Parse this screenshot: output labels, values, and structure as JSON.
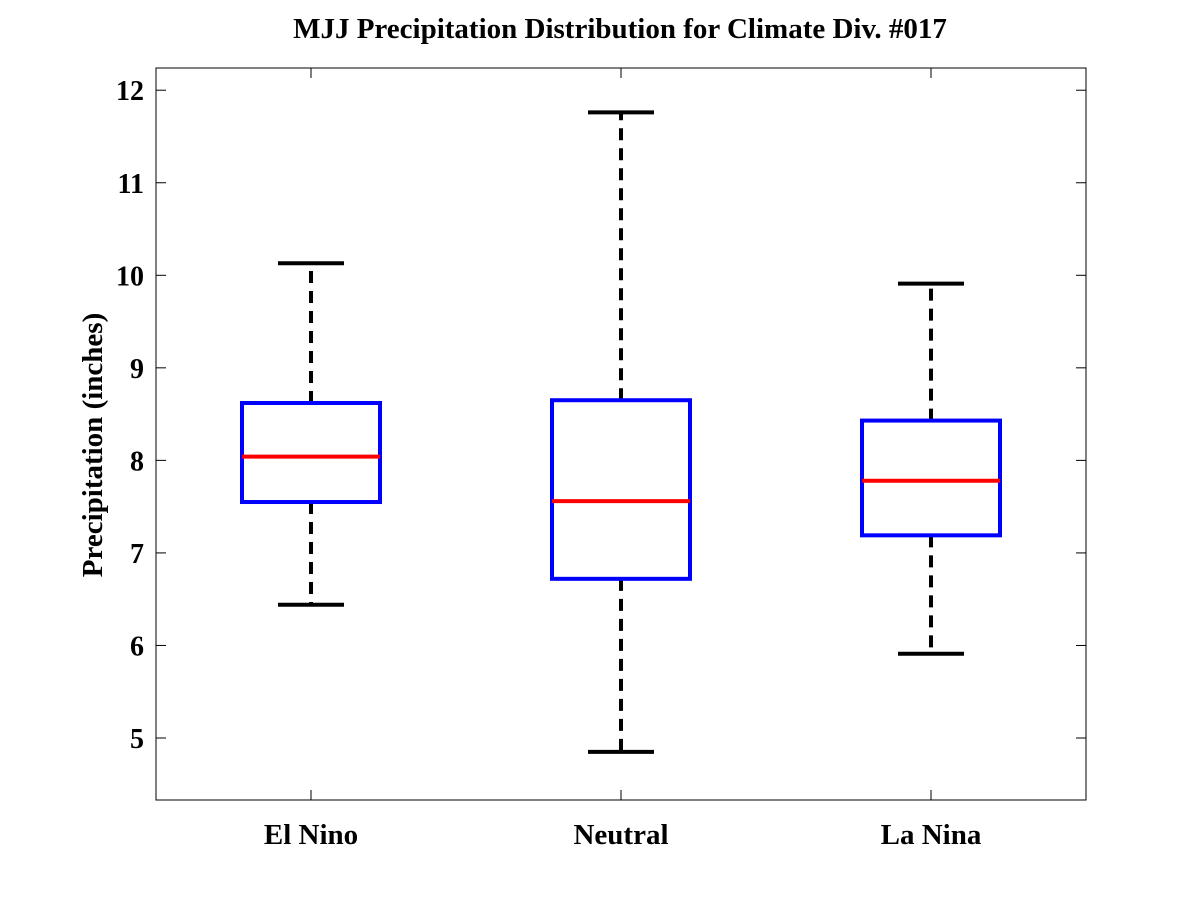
{
  "chart_data": {
    "type": "box",
    "title": "MJJ Precipitation Distribution for Climate Div. #017",
    "xlabel": "",
    "ylabel": "Precipitation (inches)",
    "ylim": [
      4.33,
      12.24
    ],
    "yticks": [
      5,
      6,
      7,
      8,
      9,
      10,
      11,
      12
    ],
    "categories": [
      "El Nino",
      "Neutral",
      "La Nina"
    ],
    "boxes": [
      {
        "name": "El Nino",
        "whisker_low": 6.44,
        "q1": 7.55,
        "median": 8.04,
        "q3": 8.62,
        "whisker_high": 10.13
      },
      {
        "name": "Neutral",
        "whisker_low": 4.85,
        "q1": 6.72,
        "median": 7.56,
        "q3": 8.65,
        "whisker_high": 11.76
      },
      {
        "name": "La Nina",
        "whisker_low": 5.91,
        "q1": 7.19,
        "median": 7.78,
        "q3": 8.43,
        "whisker_high": 9.91
      }
    ],
    "colors": {
      "box": "#0000ff",
      "median": "#ff0000",
      "whisker": "#000000",
      "axes": "#000000"
    },
    "grid": false,
    "legend": "none"
  }
}
